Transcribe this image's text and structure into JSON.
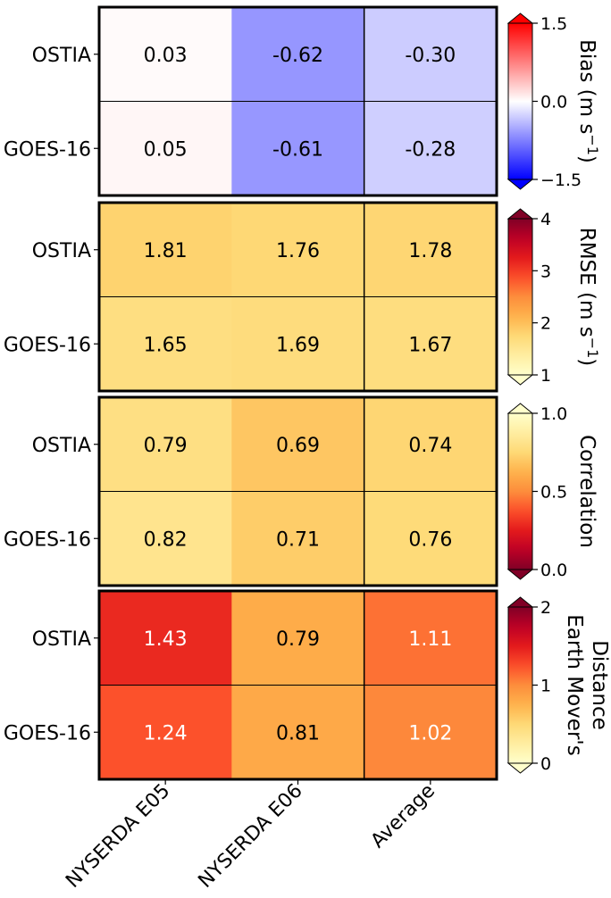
{
  "chart_data": {
    "type": "heatmap",
    "columns": [
      "NYSERDA E05",
      "NYSERDA E06",
      "Average"
    ],
    "rows": [
      "OSTIA",
      "GOES-16"
    ],
    "panels": [
      {
        "metric": "bias",
        "colorbar_label": "Bias (m s",
        "colorbar_label_sup": "−1",
        "colorbar_label_end": ")",
        "colormap": "bwr",
        "vmin": -1.5,
        "vmax": 1.5,
        "ticks": [
          -1.5,
          0.0,
          1.5
        ],
        "tick_labels": [
          "−1.5",
          "0.0",
          "1.5"
        ],
        "values": [
          [
            0.03,
            -0.62,
            -0.3
          ],
          [
            0.05,
            -0.61,
            -0.28
          ]
        ],
        "labels": [
          [
            "0.03",
            "-0.62",
            "-0.30"
          ],
          [
            "0.05",
            "-0.61",
            "-0.28"
          ]
        ]
      },
      {
        "metric": "rmse",
        "colorbar_label": "RMSE (m s",
        "colorbar_label_sup": "−1",
        "colorbar_label_end": ")",
        "colormap": "YlOrRd",
        "vmin": 1,
        "vmax": 4,
        "ticks": [
          1,
          2,
          3,
          4
        ],
        "tick_labels": [
          "1",
          "2",
          "3",
          "4"
        ],
        "values": [
          [
            1.81,
            1.76,
            1.78
          ],
          [
            1.65,
            1.69,
            1.67
          ]
        ],
        "labels": [
          [
            "1.81",
            "1.76",
            "1.78"
          ],
          [
            "1.65",
            "1.69",
            "1.67"
          ]
        ]
      },
      {
        "metric": "correlation",
        "colorbar_label": "Correlation",
        "colormap": "YlOrRd_r",
        "vmin": 0.0,
        "vmax": 1.0,
        "ticks": [
          0.0,
          0.5,
          1.0
        ],
        "tick_labels": [
          "0.0",
          "0.5",
          "1.0"
        ],
        "values": [
          [
            0.79,
            0.69,
            0.74
          ],
          [
            0.82,
            0.71,
            0.76
          ]
        ],
        "labels": [
          [
            "0.79",
            "0.69",
            "0.74"
          ],
          [
            "0.82",
            "0.71",
            "0.76"
          ]
        ]
      },
      {
        "metric": "emd",
        "colorbar_label_lines": [
          "Earth Mover's",
          "Distance"
        ],
        "colormap": "YlOrRd",
        "vmin": 0,
        "vmax": 2,
        "ticks": [
          0,
          1,
          2
        ],
        "tick_labels": [
          "0",
          "1",
          "2"
        ],
        "values": [
          [
            1.43,
            0.79,
            1.11
          ],
          [
            1.24,
            0.81,
            1.02
          ]
        ],
        "labels": [
          [
            "1.43",
            "0.79",
            "1.11"
          ],
          [
            "1.24",
            "0.81",
            "1.02"
          ]
        ],
        "white_text_threshold": 1.0
      }
    ]
  }
}
